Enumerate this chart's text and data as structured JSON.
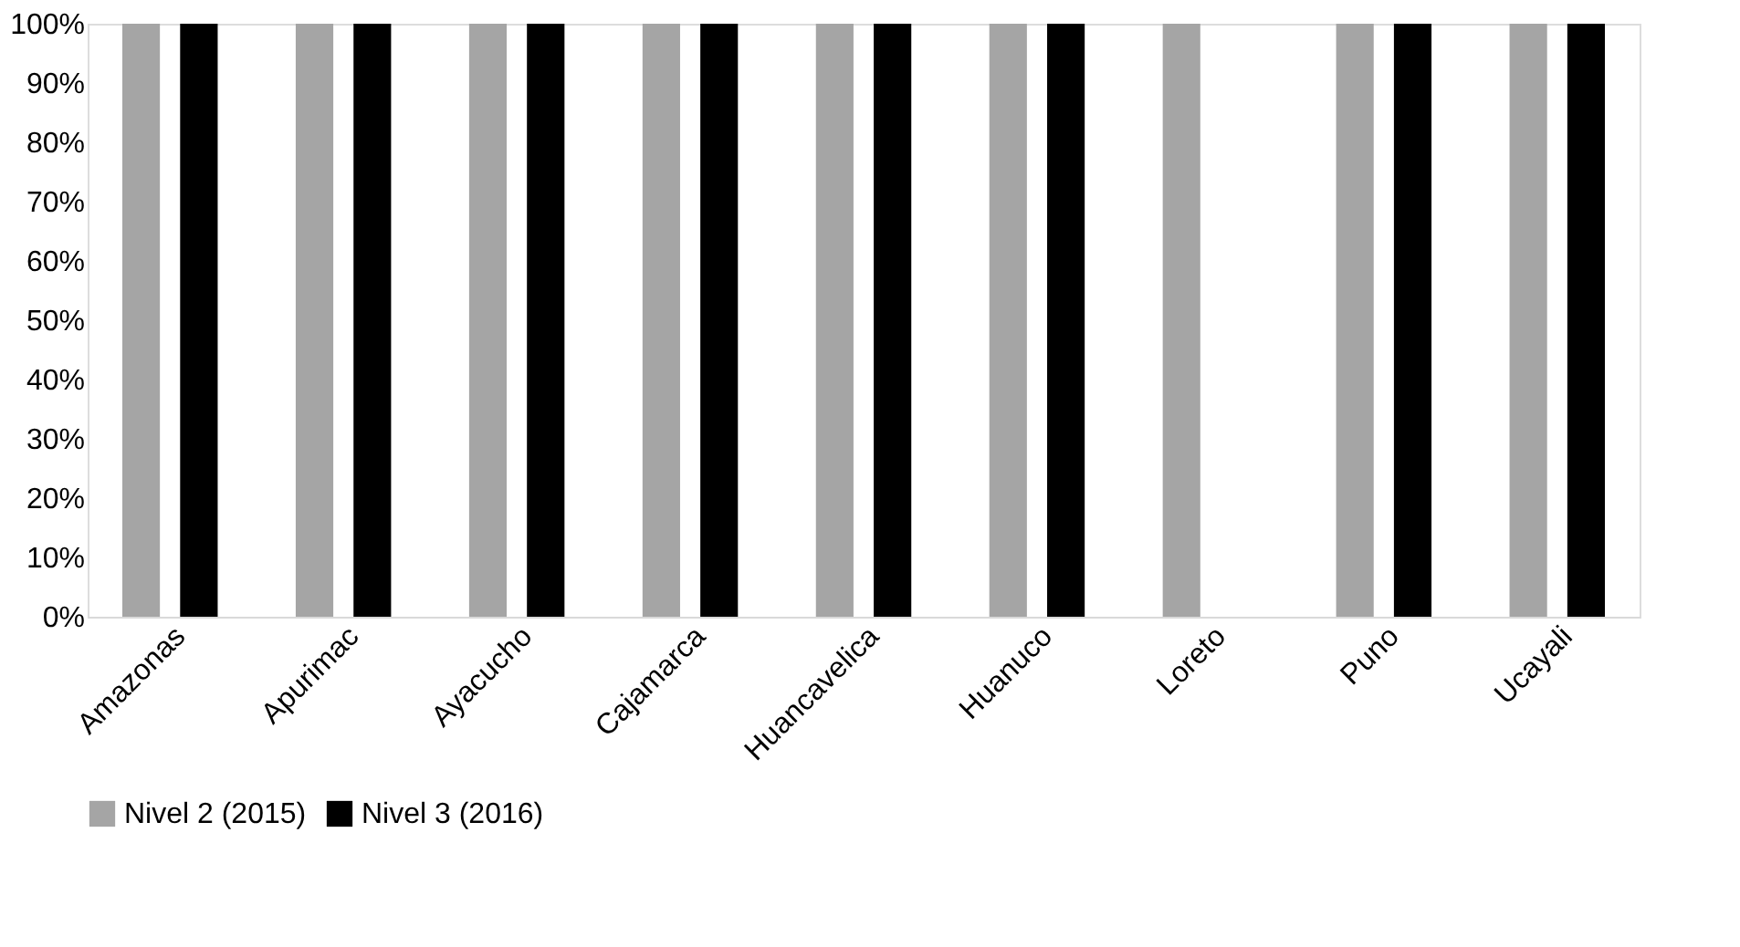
{
  "chart_data": {
    "type": "bar",
    "categories": [
      "Amazonas",
      "Apurimac",
      "Ayacucho",
      "Cajamarca",
      "Huancavelica",
      "Huanuco",
      "Loreto",
      "Puno",
      "Ucayali"
    ],
    "series": [
      {
        "name": "Nivel 2 (2015)",
        "color": "#a5a5a5",
        "values": [
          100,
          100,
          100,
          100,
          100,
          100,
          100,
          100,
          100
        ]
      },
      {
        "name": "Nivel 3 (2016)",
        "color": "#000000",
        "values": [
          100,
          100,
          100,
          100,
          100,
          100,
          0,
          100,
          100
        ]
      }
    ],
    "ylim": [
      0,
      100
    ],
    "yticks": [
      {
        "value": 0,
        "label": "0%"
      },
      {
        "value": 10,
        "label": "10%"
      },
      {
        "value": 20,
        "label": "20%"
      },
      {
        "value": 30,
        "label": "30%"
      },
      {
        "value": 40,
        "label": "40%"
      },
      {
        "value": 50,
        "label": "50%"
      },
      {
        "value": 60,
        "label": "60%"
      },
      {
        "value": 70,
        "label": "70%"
      },
      {
        "value": 80,
        "label": "80%"
      },
      {
        "value": 90,
        "label": "90%"
      },
      {
        "value": 100,
        "label": "100%"
      }
    ],
    "grid": false,
    "legend": "bottom"
  }
}
